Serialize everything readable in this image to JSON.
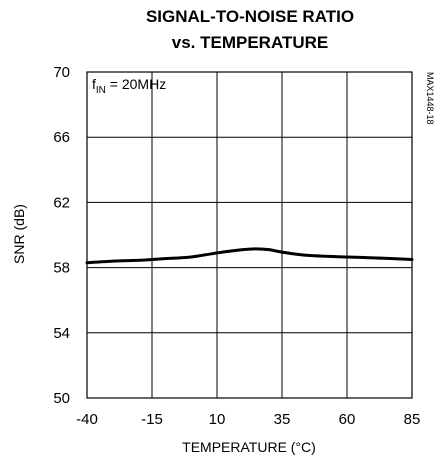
{
  "chart_data": {
    "type": "line",
    "title_line1": "SIGNAL-TO-NOISE RATIO",
    "title_line2": "vs. TEMPERATURE",
    "xlabel": "TEMPERATURE (°C)",
    "ylabel": "SNR (dB)",
    "xlim": [
      -40,
      85
    ],
    "ylim": [
      50,
      70
    ],
    "xticks": [
      -40,
      -15,
      10,
      35,
      60,
      85
    ],
    "yticks": [
      50,
      54,
      58,
      62,
      66,
      70
    ],
    "grid": true,
    "annotation_main": "f",
    "annotation_sub": "IN",
    "annotation_rest": " = 20MHz",
    "part_id": "MAX1448-18",
    "series": [
      {
        "x": [
          -40,
          -30,
          -20,
          -15,
          -10,
          0,
          10,
          20,
          25,
          30,
          35,
          45,
          60,
          70,
          85
        ],
        "y": [
          58.3,
          58.4,
          58.45,
          58.5,
          58.55,
          58.65,
          58.9,
          59.1,
          59.15,
          59.1,
          58.95,
          58.75,
          58.65,
          58.6,
          58.5
        ]
      }
    ]
  }
}
